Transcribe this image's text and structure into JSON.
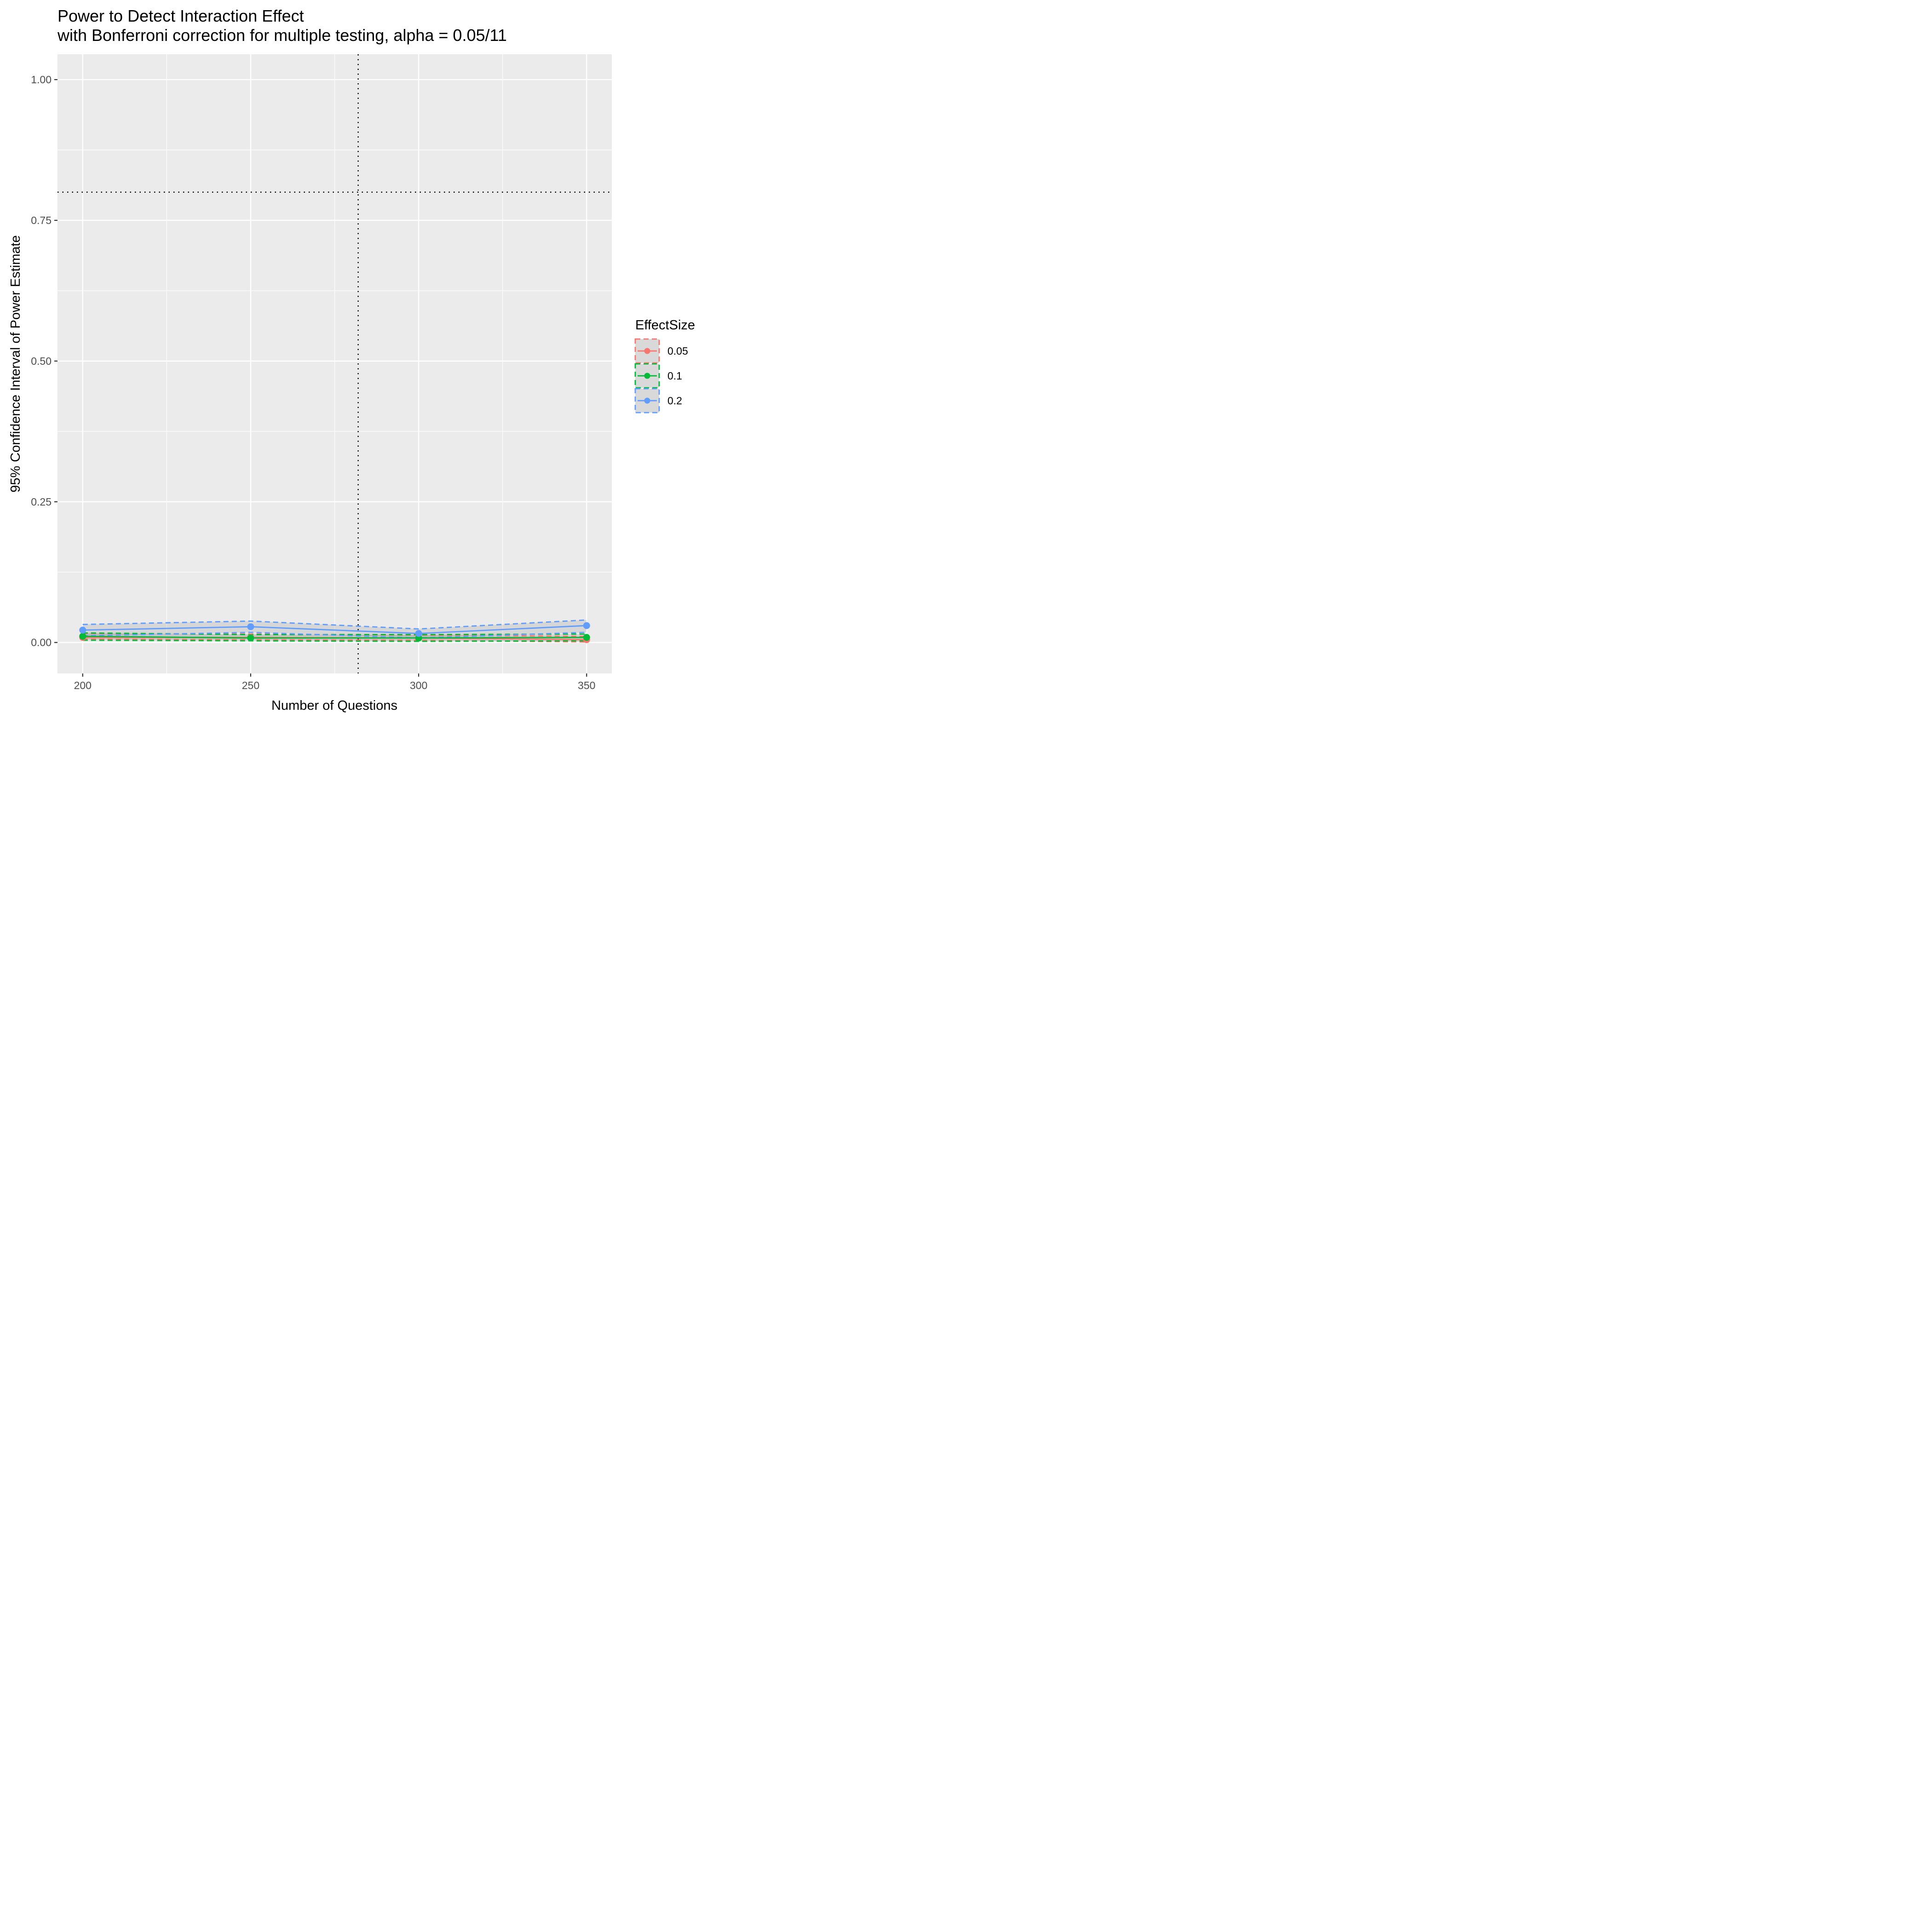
{
  "chart_data": {
    "type": "line",
    "title": "Power to Detect Interaction Effect",
    "subtitle": "with Bonferroni correction for multiple testing, alpha = 0.05/11",
    "xlabel": "Number of Questions",
    "ylabel": "95% Confidence Interval of Power Estimate",
    "xlim": [
      192.5,
      357.5
    ],
    "ylim": [
      -0.055,
      1.045
    ],
    "x_ticks": [
      200,
      250,
      300,
      350
    ],
    "x_tick_labels": [
      "200",
      "250",
      "300",
      "350"
    ],
    "y_ticks": [
      0,
      0.25,
      0.5,
      0.75,
      1.0
    ],
    "y_tick_labels": [
      "0.00",
      "0.25",
      "0.50",
      "0.75",
      "1.00"
    ],
    "grid": true,
    "reference_lines": [
      {
        "orientation": "horizontal",
        "value": 0.8,
        "style": "dotted",
        "color": "#000000"
      },
      {
        "orientation": "vertical",
        "value": 282,
        "style": "dotted",
        "color": "#000000"
      }
    ],
    "legend": {
      "title": "EffectSize",
      "placement": "right"
    },
    "x": [
      200,
      250,
      300,
      350
    ],
    "series": [
      {
        "name": "0.05",
        "color": "#F8766D",
        "values": [
          0.009,
          0.009,
          0.008,
          0.005
        ],
        "lower": [
          0.006,
          0.005,
          0.004,
          0.001
        ],
        "upper": [
          0.016,
          0.015,
          0.013,
          0.011
        ]
      },
      {
        "name": "0.1",
        "color": "#00BA38",
        "values": [
          0.011,
          0.008,
          0.008,
          0.009
        ],
        "lower": [
          0.004,
          0.003,
          0.002,
          0.003
        ],
        "upper": [
          0.017,
          0.014,
          0.014,
          0.015
        ]
      },
      {
        "name": "0.2",
        "color": "#619CFF",
        "values": [
          0.022,
          0.028,
          0.016,
          0.03
        ],
        "lower": [
          0.012,
          0.018,
          0.008,
          0.018
        ],
        "upper": [
          0.032,
          0.038,
          0.024,
          0.04
        ]
      }
    ]
  }
}
